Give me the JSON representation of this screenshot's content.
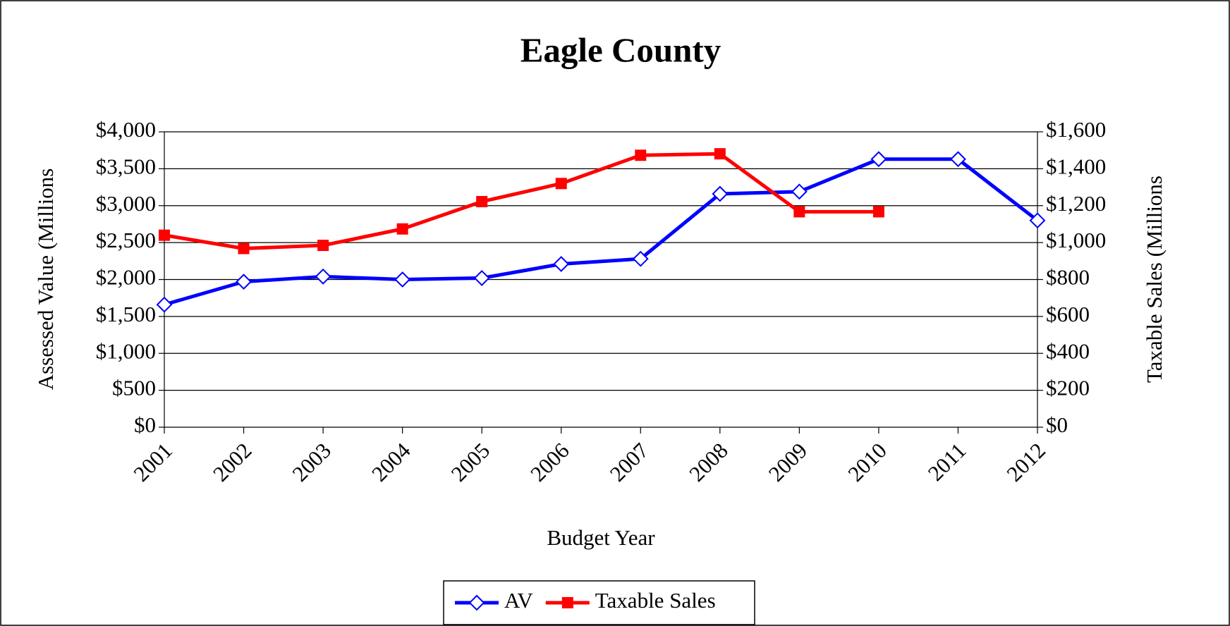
{
  "chart_data": {
    "type": "line",
    "title": "Eagle County",
    "x_label": "Budget Year",
    "y_label": "Assessed Value (Millions",
    "y2_label": "Taxable Sales (Millions",
    "categories": [
      "2001",
      "2002",
      "2003",
      "2004",
      "2005",
      "2006",
      "2007",
      "2008",
      "2009",
      "2010",
      "2011",
      "2012"
    ],
    "series": [
      {
        "name": "AV",
        "color": "#0000ff",
        "marker": "diamond",
        "values": [
          1660,
          1970,
          2040,
          2000,
          2020,
          2210,
          2280,
          3160,
          3190,
          3630,
          3630,
          2800
        ]
      },
      {
        "name": "Taxable Sales",
        "color": "#ff0000",
        "marker": "square",
        "axis": "y2",
        "values": [
          1040,
          968,
          985,
          1074,
          1222,
          1320,
          1473,
          1481,
          1167,
          1167,
          null,
          null
        ]
      }
    ],
    "ylim": [
      0,
      4000
    ],
    "yticks": [
      {
        "value": 0,
        "label": "$0"
      },
      {
        "value": 500,
        "label": "$500"
      },
      {
        "value": 1000,
        "label": "$1,000"
      },
      {
        "value": 1500,
        "label": "$1,500"
      },
      {
        "value": 2000,
        "label": "$2,000"
      },
      {
        "value": 2500,
        "label": "$2,500"
      },
      {
        "value": 3000,
        "label": "$3,000"
      },
      {
        "value": 3500,
        "label": "$3,500"
      },
      {
        "value": 4000,
        "label": "$4,000"
      }
    ],
    "y2lim": [
      0,
      1600
    ],
    "y2ticks": [
      {
        "value": 0,
        "label": "$0"
      },
      {
        "value": 200,
        "label": "$200"
      },
      {
        "value": 400,
        "label": "$400"
      },
      {
        "value": 600,
        "label": "$600"
      },
      {
        "value": 800,
        "label": "$800"
      },
      {
        "value": 1000,
        "label": "$1,000"
      },
      {
        "value": 1200,
        "label": "$1,200"
      },
      {
        "value": 1400,
        "label": "$1,400"
      },
      {
        "value": 1600,
        "label": "$1,600"
      }
    ],
    "grid": true,
    "legend": "bottom"
  }
}
